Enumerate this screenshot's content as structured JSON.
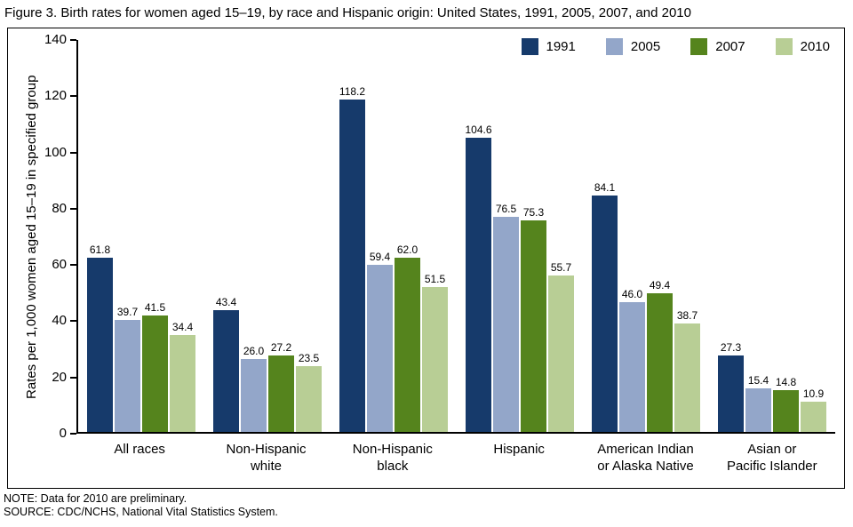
{
  "title": "Figure 3. Birth rates for women aged 15–19, by race and Hispanic origin: United States, 1991, 2005, 2007, and 2010",
  "notes": {
    "note": "NOTE: Data for 2010 are preliminary.",
    "source": "SOURCE: CDC/NCHS, National Vital Statistics System."
  },
  "chart_data": {
    "type": "bar",
    "title": "Figure 3. Birth rates for women aged 15–19, by race and Hispanic origin: United States, 1991, 2005, 2007, and 2010",
    "xlabel": "",
    "ylabel": "Rates per 1,000 women aged 15–19 in specified group",
    "ylim": [
      0,
      140
    ],
    "ytick_step": 20,
    "grid": false,
    "legend_position": "top-right",
    "categories": [
      "All races",
      "Non-Hispanic white",
      "Non-Hispanic black",
      "Hispanic",
      "American Indian or Alaska Native",
      "Asian or Pacific Islander"
    ],
    "category_label_lines": [
      [
        "All races"
      ],
      [
        "Non-Hispanic",
        "white"
      ],
      [
        "Non-Hispanic",
        "black"
      ],
      [
        "Hispanic"
      ],
      [
        "American Indian",
        "or Alaska Native"
      ],
      [
        "Asian or",
        "Pacific Islander"
      ]
    ],
    "series": [
      {
        "name": "1991",
        "color": "#163A6B",
        "values": [
          61.8,
          43.4,
          118.2,
          104.6,
          84.1,
          27.3
        ]
      },
      {
        "name": "2005",
        "color": "#93A6C9",
        "values": [
          39.7,
          26.0,
          59.4,
          76.5,
          46.0,
          15.4
        ]
      },
      {
        "name": "2007",
        "color": "#55841D",
        "values": [
          41.5,
          27.2,
          62.0,
          75.3,
          49.4,
          14.8
        ]
      },
      {
        "name": "2010",
        "color": "#B8CE95",
        "values": [
          34.4,
          23.5,
          51.5,
          55.7,
          38.7,
          10.9
        ]
      }
    ]
  }
}
